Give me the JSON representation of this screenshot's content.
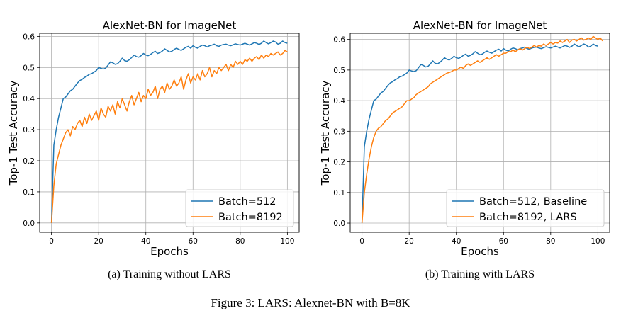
{
  "figure_caption": "Figure 3:  LARS: Alexnet-BN with B=8K",
  "colors": {
    "baseline": "#1f77b4",
    "large": "#ff7f0e",
    "grid": "#b0b0b0"
  },
  "chart_data": [
    {
      "type": "line",
      "title": "AlexNet-BN for ImageNet",
      "caption": "(a) Training without LARS",
      "xlabel": "Epochs",
      "ylabel": "Top-1 Test Accuracy",
      "xlim": [
        -5,
        105
      ],
      "ylim": [
        -0.03,
        0.61
      ],
      "xticks": [
        0,
        20,
        40,
        60,
        80,
        100
      ],
      "yticks": [
        0.0,
        0.1,
        0.2,
        0.3,
        0.4,
        0.5,
        0.6
      ],
      "grid": true,
      "legend_position": "bottom-right",
      "series": [
        {
          "name": "Batch=512",
          "color": "#1f77b4",
          "x": [
            0,
            1,
            2,
            3,
            4,
            5,
            6,
            7,
            8,
            9,
            10,
            11,
            12,
            13,
            14,
            15,
            16,
            17,
            18,
            19,
            20,
            21,
            22,
            23,
            24,
            25,
            26,
            27,
            28,
            29,
            30,
            31,
            32,
            33,
            34,
            35,
            36,
            37,
            38,
            39,
            40,
            41,
            42,
            43,
            44,
            45,
            46,
            47,
            48,
            49,
            50,
            51,
            52,
            53,
            54,
            55,
            56,
            57,
            58,
            59,
            60,
            61,
            62,
            63,
            64,
            65,
            66,
            67,
            68,
            69,
            70,
            71,
            72,
            73,
            74,
            75,
            76,
            77,
            78,
            79,
            80,
            81,
            82,
            83,
            84,
            85,
            86,
            87,
            88,
            89,
            90,
            91,
            92,
            93,
            94,
            95,
            96,
            97,
            98,
            99,
            100
          ],
          "y": [
            0.0,
            0.25,
            0.3,
            0.34,
            0.37,
            0.4,
            0.405,
            0.415,
            0.425,
            0.43,
            0.44,
            0.45,
            0.458,
            0.462,
            0.468,
            0.472,
            0.478,
            0.48,
            0.485,
            0.49,
            0.5,
            0.497,
            0.495,
            0.498,
            0.508,
            0.518,
            0.515,
            0.51,
            0.512,
            0.52,
            0.53,
            0.522,
            0.52,
            0.525,
            0.532,
            0.54,
            0.535,
            0.533,
            0.538,
            0.545,
            0.54,
            0.538,
            0.542,
            0.548,
            0.552,
            0.545,
            0.548,
            0.553,
            0.56,
            0.555,
            0.55,
            0.552,
            0.558,
            0.562,
            0.558,
            0.555,
            0.56,
            0.565,
            0.568,
            0.562,
            0.57,
            0.565,
            0.562,
            0.568,
            0.572,
            0.57,
            0.566,
            0.57,
            0.572,
            0.575,
            0.57,
            0.568,
            0.572,
            0.574,
            0.575,
            0.572,
            0.57,
            0.573,
            0.576,
            0.574,
            0.572,
            0.575,
            0.578,
            0.575,
            0.572,
            0.576,
            0.58,
            0.578,
            0.574,
            0.578,
            0.585,
            0.58,
            0.576,
            0.58,
            0.585,
            0.582,
            0.575,
            0.578,
            0.585,
            0.58,
            0.578
          ]
        },
        {
          "name": "Batch=8192",
          "color": "#ff7f0e",
          "x": [
            0,
            1,
            2,
            3,
            4,
            5,
            6,
            7,
            8,
            9,
            10,
            11,
            12,
            13,
            14,
            15,
            16,
            17,
            18,
            19,
            20,
            21,
            22,
            23,
            24,
            25,
            26,
            27,
            28,
            29,
            30,
            31,
            32,
            33,
            34,
            35,
            36,
            37,
            38,
            39,
            40,
            41,
            42,
            43,
            44,
            45,
            46,
            47,
            48,
            49,
            50,
            51,
            52,
            53,
            54,
            55,
            56,
            57,
            58,
            59,
            60,
            61,
            62,
            63,
            64,
            65,
            66,
            67,
            68,
            69,
            70,
            71,
            72,
            73,
            74,
            75,
            76,
            77,
            78,
            79,
            80,
            81,
            82,
            83,
            84,
            85,
            86,
            87,
            88,
            89,
            90,
            91,
            92,
            93,
            94,
            95,
            96,
            97,
            98,
            99,
            100
          ],
          "y": [
            0.0,
            0.12,
            0.19,
            0.22,
            0.25,
            0.27,
            0.29,
            0.3,
            0.28,
            0.31,
            0.3,
            0.32,
            0.33,
            0.31,
            0.34,
            0.32,
            0.35,
            0.33,
            0.345,
            0.36,
            0.33,
            0.37,
            0.35,
            0.34,
            0.375,
            0.36,
            0.38,
            0.35,
            0.39,
            0.37,
            0.4,
            0.38,
            0.36,
            0.39,
            0.41,
            0.38,
            0.4,
            0.42,
            0.39,
            0.41,
            0.4,
            0.43,
            0.41,
            0.42,
            0.44,
            0.4,
            0.43,
            0.44,
            0.42,
            0.45,
            0.43,
            0.44,
            0.46,
            0.44,
            0.45,
            0.47,
            0.43,
            0.46,
            0.48,
            0.45,
            0.47,
            0.46,
            0.48,
            0.46,
            0.49,
            0.47,
            0.48,
            0.5,
            0.47,
            0.49,
            0.48,
            0.5,
            0.49,
            0.5,
            0.51,
            0.49,
            0.51,
            0.5,
            0.52,
            0.51,
            0.52,
            0.51,
            0.525,
            0.52,
            0.53,
            0.52,
            0.53,
            0.535,
            0.525,
            0.54,
            0.53,
            0.54,
            0.535,
            0.545,
            0.54,
            0.545,
            0.55,
            0.54,
            0.545,
            0.555,
            0.55
          ]
        }
      ]
    },
    {
      "type": "line",
      "title": "AlexNet-BN for ImageNet",
      "caption": "(b) Training with LARS",
      "xlabel": "Epochs",
      "ylabel": "Top-1 Test Accuracy",
      "xlim": [
        -5,
        105
      ],
      "ylim": [
        -0.03,
        0.62
      ],
      "xticks": [
        0,
        20,
        40,
        60,
        80,
        100
      ],
      "yticks": [
        0.0,
        0.1,
        0.2,
        0.3,
        0.4,
        0.5,
        0.6
      ],
      "grid": true,
      "legend_position": "bottom-right",
      "series": [
        {
          "name": "Batch=512, Baseline",
          "color": "#1f77b4",
          "x": [
            0,
            1,
            2,
            3,
            4,
            5,
            6,
            7,
            8,
            9,
            10,
            11,
            12,
            13,
            14,
            15,
            16,
            17,
            18,
            19,
            20,
            21,
            22,
            23,
            24,
            25,
            26,
            27,
            28,
            29,
            30,
            31,
            32,
            33,
            34,
            35,
            36,
            37,
            38,
            39,
            40,
            41,
            42,
            43,
            44,
            45,
            46,
            47,
            48,
            49,
            50,
            51,
            52,
            53,
            54,
            55,
            56,
            57,
            58,
            59,
            60,
            61,
            62,
            63,
            64,
            65,
            66,
            67,
            68,
            69,
            70,
            71,
            72,
            73,
            74,
            75,
            76,
            77,
            78,
            79,
            80,
            81,
            82,
            83,
            84,
            85,
            86,
            87,
            88,
            89,
            90,
            91,
            92,
            93,
            94,
            95,
            96,
            97,
            98,
            99,
            100
          ],
          "y": [
            0.0,
            0.25,
            0.3,
            0.34,
            0.37,
            0.4,
            0.405,
            0.415,
            0.425,
            0.43,
            0.44,
            0.45,
            0.458,
            0.462,
            0.468,
            0.472,
            0.478,
            0.48,
            0.485,
            0.49,
            0.5,
            0.497,
            0.495,
            0.498,
            0.508,
            0.518,
            0.515,
            0.51,
            0.512,
            0.52,
            0.53,
            0.522,
            0.52,
            0.525,
            0.532,
            0.54,
            0.535,
            0.533,
            0.538,
            0.545,
            0.54,
            0.538,
            0.542,
            0.548,
            0.552,
            0.545,
            0.548,
            0.553,
            0.56,
            0.555,
            0.55,
            0.552,
            0.558,
            0.562,
            0.558,
            0.555,
            0.56,
            0.565,
            0.568,
            0.562,
            0.57,
            0.565,
            0.562,
            0.568,
            0.572,
            0.57,
            0.566,
            0.57,
            0.572,
            0.575,
            0.57,
            0.568,
            0.572,
            0.574,
            0.575,
            0.572,
            0.57,
            0.573,
            0.576,
            0.574,
            0.572,
            0.575,
            0.578,
            0.575,
            0.572,
            0.576,
            0.58,
            0.578,
            0.574,
            0.578,
            0.585,
            0.58,
            0.576,
            0.58,
            0.585,
            0.582,
            0.575,
            0.578,
            0.585,
            0.58,
            0.578
          ]
        },
        {
          "name": "Batch=8192, LARS",
          "color": "#ff7f0e",
          "x": [
            0,
            1,
            2,
            3,
            4,
            5,
            6,
            7,
            8,
            9,
            10,
            11,
            12,
            13,
            14,
            15,
            16,
            17,
            18,
            19,
            20,
            21,
            22,
            23,
            24,
            25,
            26,
            27,
            28,
            29,
            30,
            31,
            32,
            33,
            34,
            35,
            36,
            37,
            38,
            39,
            40,
            41,
            42,
            43,
            44,
            45,
            46,
            47,
            48,
            49,
            50,
            51,
            52,
            53,
            54,
            55,
            56,
            57,
            58,
            59,
            60,
            61,
            62,
            63,
            64,
            65,
            66,
            67,
            68,
            69,
            70,
            71,
            72,
            73,
            74,
            75,
            76,
            77,
            78,
            79,
            80,
            81,
            82,
            83,
            84,
            85,
            86,
            87,
            88,
            89,
            90,
            91,
            92,
            93,
            94,
            95,
            96,
            97,
            98,
            99,
            100,
            101,
            102
          ],
          "y": [
            0.0,
            0.1,
            0.16,
            0.21,
            0.25,
            0.28,
            0.3,
            0.31,
            0.315,
            0.325,
            0.335,
            0.34,
            0.35,
            0.36,
            0.365,
            0.37,
            0.375,
            0.38,
            0.39,
            0.4,
            0.4,
            0.405,
            0.41,
            0.42,
            0.425,
            0.43,
            0.435,
            0.44,
            0.445,
            0.455,
            0.46,
            0.465,
            0.47,
            0.475,
            0.48,
            0.485,
            0.49,
            0.492,
            0.495,
            0.5,
            0.5,
            0.505,
            0.51,
            0.505,
            0.515,
            0.52,
            0.515,
            0.52,
            0.525,
            0.53,
            0.525,
            0.53,
            0.535,
            0.54,
            0.535,
            0.54,
            0.545,
            0.55,
            0.545,
            0.55,
            0.555,
            0.555,
            0.56,
            0.56,
            0.565,
            0.56,
            0.565,
            0.57,
            0.565,
            0.57,
            0.575,
            0.57,
            0.575,
            0.58,
            0.575,
            0.58,
            0.578,
            0.585,
            0.58,
            0.585,
            0.59,
            0.585,
            0.59,
            0.588,
            0.595,
            0.59,
            0.595,
            0.6,
            0.59,
            0.598,
            0.6,
            0.595,
            0.6,
            0.605,
            0.598,
            0.6,
            0.605,
            0.6,
            0.61,
            0.605,
            0.6,
            0.605,
            0.595
          ]
        }
      ]
    }
  ]
}
